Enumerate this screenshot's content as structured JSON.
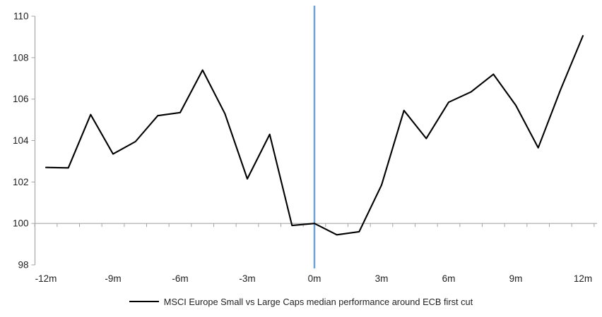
{
  "chart_data": {
    "type": "line",
    "title": "",
    "xlabel": "",
    "ylabel": "",
    "x_unit": "months relative to ECB first rate cut",
    "x": [
      -12,
      -11,
      -10,
      -9,
      -8,
      -7,
      -6,
      -5,
      -4,
      -3,
      -2,
      -1,
      0,
      1,
      2,
      3,
      4,
      5,
      6,
      7,
      8,
      9,
      10,
      11,
      12
    ],
    "series": [
      {
        "name": "MSCI Europe Small vs Large Caps median performance around ECB first cut",
        "color": "#000000",
        "values": [
          102.7,
          102.68,
          105.25,
          103.35,
          103.95,
          105.2,
          105.35,
          107.4,
          105.3,
          102.15,
          104.3,
          99.9,
          100.0,
          99.45,
          99.6,
          101.85,
          105.45,
          104.1,
          105.85,
          106.35,
          107.2,
          105.7,
          103.65,
          106.45,
          109.05
        ]
      }
    ],
    "ylim": [
      98,
      110
    ],
    "y_ticks": [
      98,
      100,
      102,
      104,
      106,
      108,
      110
    ],
    "x_tick_positions": [
      -12,
      -9,
      -6,
      -3,
      0,
      3,
      6,
      9,
      12
    ],
    "x_tick_labels": [
      "-12m",
      "-9m",
      "-6m",
      "-3m",
      "0m",
      "3m",
      "6m",
      "9m",
      "12m"
    ],
    "baseline_value": 100,
    "event_line_x": 0,
    "event_line_color": "#6FA3D6",
    "axis_color": "#A6A6A6",
    "grid": "baseline-only",
    "legend_position": "bottom-center"
  }
}
